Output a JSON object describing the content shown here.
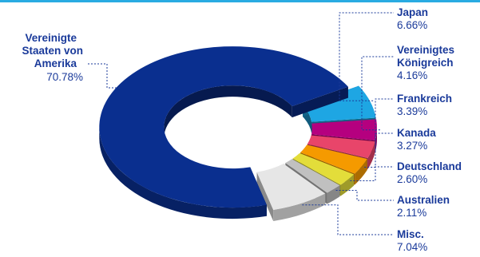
{
  "colors": {
    "top_rule": "#29ABE2",
    "label_text": "#1a3a9a",
    "leader": "#1a3a9a"
  },
  "chart_data": {
    "type": "pie",
    "style": "3d-donut",
    "title": "",
    "legend": "none",
    "slices": [
      {
        "label_lines": [
          "Japan"
        ],
        "value_label": "6.66%",
        "value": 6.66,
        "color": "#1ea6e3"
      },
      {
        "label_lines": [
          "Vereinigtes",
          "Königreich"
        ],
        "value_label": "4.16%",
        "value": 4.16,
        "color": "#b5007f"
      },
      {
        "label_lines": [
          "Frankreich"
        ],
        "value_label": "3.39%",
        "value": 3.39,
        "color": "#e8456a"
      },
      {
        "label_lines": [
          "Kanada"
        ],
        "value_label": "3.27%",
        "value": 3.27,
        "color": "#f59a00"
      },
      {
        "label_lines": [
          "Deutschland"
        ],
        "value_label": "2.60%",
        "value": 2.6,
        "color": "#e3dd3a"
      },
      {
        "label_lines": [
          "Australien"
        ],
        "value_label": "2.11%",
        "value": 2.11,
        "color": "#c0c0c0"
      },
      {
        "label_lines": [
          "Misc."
        ],
        "value_label": "7.04%",
        "value": 7.04,
        "color": "#e6e6e6"
      },
      {
        "label_lines": [
          "Vereinigte",
          "Staaten von",
          "Amerika"
        ],
        "value_label": "70.78%",
        "value": 70.78,
        "color": "#0a2f8f"
      }
    ]
  }
}
